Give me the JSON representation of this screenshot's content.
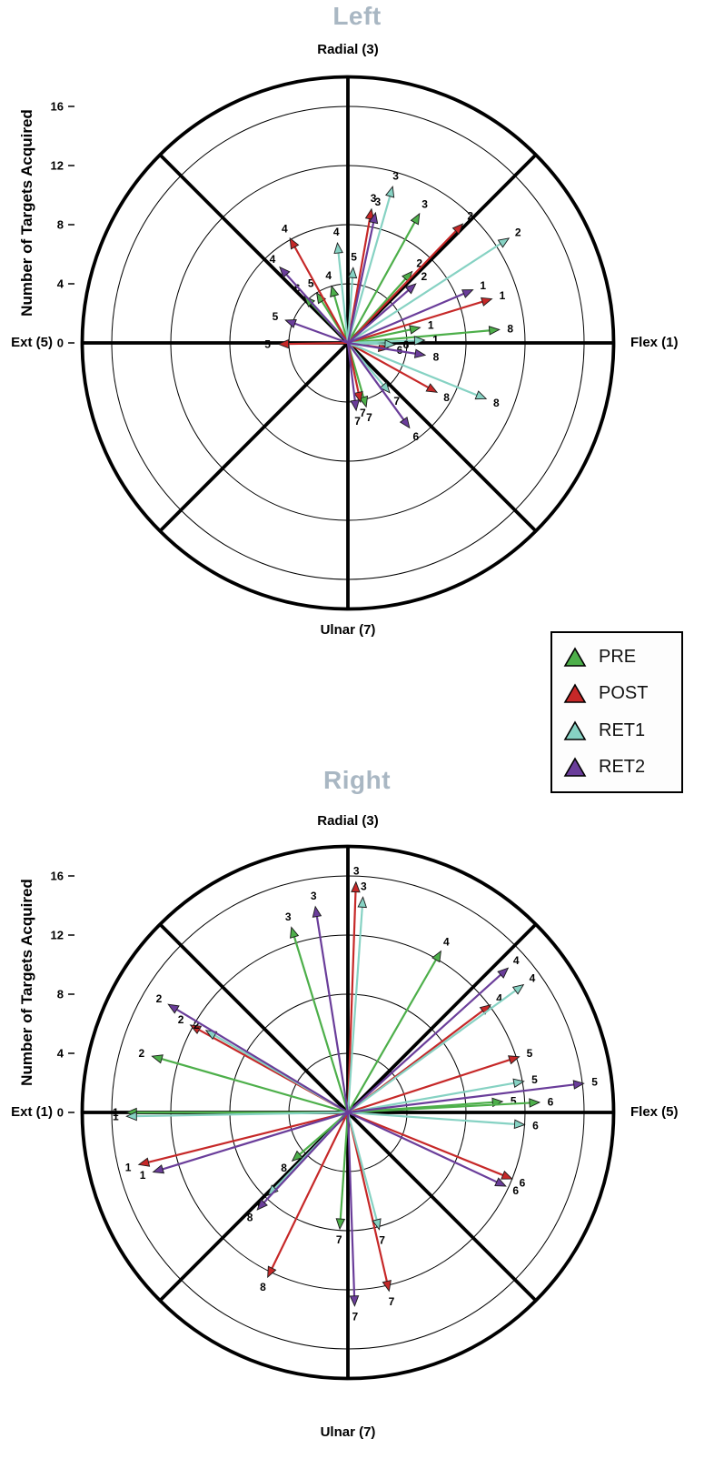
{
  "legend": {
    "items": [
      {
        "label": "PRE",
        "color": "#4daf4a"
      },
      {
        "label": "POST",
        "color": "#c62828"
      },
      {
        "label": "RET1",
        "color": "#86d2c3"
      },
      {
        "label": "RET2",
        "color": "#6a3d9a"
      }
    ]
  },
  "chart_data": [
    {
      "type": "polar-vectors",
      "title": "Left",
      "y_axis_label": "Number of Targets Acquired",
      "axis_labels": {
        "top": "Radial (3)",
        "right": "Flex (1)",
        "left": "Ext (5)",
        "bottom": "Ulnar (7)"
      },
      "ticks": [
        0,
        4,
        8,
        12,
        16
      ],
      "ring_values": [
        4,
        8,
        12,
        16
      ],
      "outer_ring_value": 18,
      "spoke_angles_deg": [
        0,
        45,
        90,
        135,
        180,
        225,
        270,
        315
      ],
      "series": [
        {
          "name": "PRE",
          "color": "#4daf4a",
          "vectors": [
            {
              "target": "1",
              "angle_deg": 12,
              "magnitude": 5.0
            },
            {
              "target": "2",
              "angle_deg": 48,
              "magnitude": 6.5
            },
            {
              "target": "3",
              "angle_deg": 61,
              "magnitude": 10.0
            },
            {
              "target": "4",
              "angle_deg": 106,
              "magnitude": 4.0
            },
            {
              "target": "5",
              "angle_deg": 122,
              "magnitude": 4.0
            },
            {
              "target": "6",
              "angle_deg": 133,
              "magnitude": 4.3
            },
            {
              "target": "7",
              "angle_deg": 286,
              "magnitude": 4.5
            },
            {
              "target": "8",
              "angle_deg": 5,
              "magnitude": 10.3
            }
          ]
        },
        {
          "name": "POST",
          "color": "#c62828",
          "vectors": [
            {
              "target": "1",
              "angle_deg": 17,
              "magnitude": 10.2
            },
            {
              "target": "2",
              "angle_deg": 46,
              "magnitude": 11.2
            },
            {
              "target": "3",
              "angle_deg": 80,
              "magnitude": 9.2
            },
            {
              "target": "4",
              "angle_deg": 119,
              "magnitude": 8.1
            },
            {
              "target": "5",
              "angle_deg": 181,
              "magnitude": 4.7
            },
            {
              "target": "6",
              "angle_deg": 352,
              "magnitude": 2.8
            },
            {
              "target": "7",
              "angle_deg": 282,
              "magnitude": 4.1
            },
            {
              "target": "8",
              "angle_deg": 331,
              "magnitude": 6.9
            }
          ]
        },
        {
          "name": "RET1",
          "color": "#86d2c3",
          "vectors": [
            {
              "target": "1",
              "angle_deg": 2,
              "magnitude": 5.2
            },
            {
              "target": "2",
              "angle_deg": 33,
              "magnitude": 13.0
            },
            {
              "target": "3",
              "angle_deg": 74,
              "magnitude": 11.0
            },
            {
              "target": "4",
              "angle_deg": 96,
              "magnitude": 6.8
            },
            {
              "target": "5",
              "angle_deg": 86,
              "magnitude": 5.1
            },
            {
              "target": "6",
              "angle_deg": 358,
              "magnitude": 3.2
            },
            {
              "target": "7",
              "angle_deg": 310,
              "magnitude": 4.4
            },
            {
              "target": "8",
              "angle_deg": 338,
              "magnitude": 10.1
            }
          ]
        },
        {
          "name": "RET2",
          "color": "#6a3d9a",
          "vectors": [
            {
              "target": "1",
              "angle_deg": 23,
              "magnitude": 9.2
            },
            {
              "target": "2",
              "angle_deg": 41,
              "magnitude": 6.1
            },
            {
              "target": "3",
              "angle_deg": 78,
              "magnitude": 9.0
            },
            {
              "target": "4",
              "angle_deg": 132,
              "magnitude": 6.9
            },
            {
              "target": "5",
              "angle_deg": 160,
              "magnitude": 4.5
            },
            {
              "target": "6",
              "angle_deg": 306,
              "magnitude": 7.1
            },
            {
              "target": "7",
              "angle_deg": 277,
              "magnitude": 4.6
            },
            {
              "target": "8",
              "angle_deg": 351,
              "magnitude": 5.3
            }
          ]
        }
      ]
    },
    {
      "type": "polar-vectors",
      "title": "Right",
      "y_axis_label": "Number of Targets Acquired",
      "axis_labels": {
        "top": "Radial (3)",
        "right": "Flex (5)",
        "left": "Ext (1)",
        "bottom": "Ulnar (7)"
      },
      "ticks": [
        0,
        4,
        8,
        12,
        16
      ],
      "ring_values": [
        4,
        8,
        12,
        16
      ],
      "outer_ring_value": 18,
      "spoke_angles_deg": [
        0,
        45,
        90,
        135,
        180,
        225,
        270,
        315
      ],
      "series": [
        {
          "name": "PRE",
          "color": "#4daf4a",
          "vectors": [
            {
              "target": "1",
              "angle_deg": 180,
              "magnitude": 15.0
            },
            {
              "target": "2",
              "angle_deg": 164,
              "magnitude": 13.8
            },
            {
              "target": "3",
              "angle_deg": 107,
              "magnitude": 13.1
            },
            {
              "target": "4",
              "angle_deg": 60,
              "magnitude": 12.6
            },
            {
              "target": "5",
              "angle_deg": 4,
              "magnitude": 10.5
            },
            {
              "target": "6",
              "angle_deg": 3,
              "magnitude": 13.0
            },
            {
              "target": "7",
              "angle_deg": 266,
              "magnitude": 7.9
            },
            {
              "target": "8",
              "angle_deg": 221,
              "magnitude": 5.0
            }
          ]
        },
        {
          "name": "POST",
          "color": "#c62828",
          "vectors": [
            {
              "target": "1",
              "angle_deg": 194,
              "magnitude": 14.6
            },
            {
              "target": "2",
              "angle_deg": 151,
              "magnitude": 12.2
            },
            {
              "target": "3",
              "angle_deg": 88,
              "magnitude": 15.6
            },
            {
              "target": "4",
              "angle_deg": 37,
              "magnitude": 12.1
            },
            {
              "target": "5",
              "angle_deg": 18,
              "magnitude": 12.2
            },
            {
              "target": "6",
              "angle_deg": 338,
              "magnitude": 12.0
            },
            {
              "target": "7",
              "angle_deg": 283,
              "magnitude": 12.4
            },
            {
              "target": "8",
              "angle_deg": 244,
              "magnitude": 12.4
            }
          ]
        },
        {
          "name": "RET1",
          "color": "#86d2c3",
          "vectors": [
            {
              "target": "1",
              "angle_deg": 181,
              "magnitude": 15.0
            },
            {
              "target": "2",
              "angle_deg": 150,
              "magnitude": 11.1
            },
            {
              "target": "3",
              "angle_deg": 86,
              "magnitude": 14.6
            },
            {
              "target": "4",
              "angle_deg": 36,
              "magnitude": 14.7
            },
            {
              "target": "5",
              "angle_deg": 10,
              "magnitude": 12.1
            },
            {
              "target": "6",
              "angle_deg": 356,
              "magnitude": 12.0
            },
            {
              "target": "7",
              "angle_deg": 285,
              "magnitude": 8.2
            },
            {
              "target": "8",
              "angle_deg": 226,
              "magnitude": 7.8
            }
          ]
        },
        {
          "name": "RET2",
          "color": "#6a3d9a",
          "vectors": [
            {
              "target": "1",
              "angle_deg": 197,
              "magnitude": 13.8
            },
            {
              "target": "2",
              "angle_deg": 149,
              "magnitude": 14.2
            },
            {
              "target": "3",
              "angle_deg": 99,
              "magnitude": 14.1
            },
            {
              "target": "4",
              "angle_deg": 42,
              "magnitude": 14.6
            },
            {
              "target": "5",
              "angle_deg": 7,
              "magnitude": 16.1
            },
            {
              "target": "6",
              "angle_deg": 335,
              "magnitude": 11.8
            },
            {
              "target": "7",
              "angle_deg": 272,
              "magnitude": 13.1
            },
            {
              "target": "8",
              "angle_deg": 227,
              "magnitude": 9.0
            }
          ]
        }
      ]
    }
  ]
}
